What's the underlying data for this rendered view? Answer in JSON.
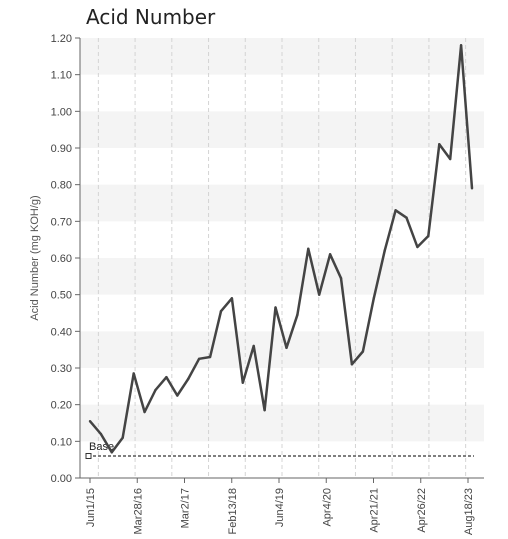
{
  "chart_data": {
    "type": "line",
    "title": "Acid Number",
    "xlabel": "",
    "ylabel": "Acid Number (mg KOH/g)",
    "ylim": [
      0,
      1.2
    ],
    "y_ticks": [
      "0.00",
      "0.10",
      "0.20",
      "0.30",
      "0.40",
      "0.50",
      "0.60",
      "0.70",
      "0.80",
      "0.90",
      "1.00",
      "1.10",
      "1.20"
    ],
    "x_tick_labels": [
      "Jun1/15",
      "Mar28/16",
      "Mar2/17",
      "Feb13/18",
      "Jun4/19",
      "Apr4/20",
      "Apr21/21",
      "Apr26/22",
      "Aug18/23"
    ],
    "grid": "dashed vertical lines, alternating horizontal bands",
    "legend": "none",
    "series": [
      {
        "values": [
          0.155,
          0.12,
          0.07,
          0.11,
          0.285,
          0.18,
          0.24,
          0.275,
          0.225,
          0.27,
          0.325,
          0.33,
          0.455,
          0.49,
          0.26,
          0.36,
          0.185,
          0.465,
          0.355,
          0.445,
          0.625,
          0.5,
          0.61,
          0.545,
          0.31,
          0.345,
          0.49,
          0.62,
          0.73,
          0.71,
          0.63,
          0.66,
          0.91,
          0.87,
          1.18,
          0.79
        ]
      }
    ],
    "reference_line": {
      "label": "Base",
      "value": 0.06
    },
    "colors": {
      "line": "#444444",
      "band": "#f4f4f4",
      "grid": "#d4d4d4",
      "reference": "#333333"
    }
  }
}
